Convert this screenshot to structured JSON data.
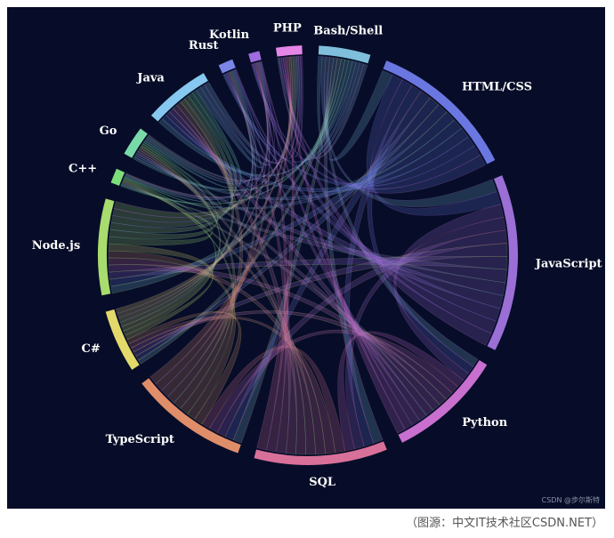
{
  "chart_data": {
    "type": "chord",
    "categories": [
      "Bash/Shell",
      "HTML/CSS",
      "JavaScript",
      "Python",
      "SQL",
      "TypeScript",
      "C#",
      "Node.js",
      "C++",
      "Go",
      "Java",
      "Rust",
      "Kotlin",
      "PHP"
    ],
    "values": [
      14,
      40,
      48,
      31,
      36,
      32,
      17,
      26,
      4,
      8,
      18,
      4,
      3,
      7
    ],
    "colors": [
      "#7fbfdc",
      "#6b77e0",
      "#9b6fd6",
      "#c86fcf",
      "#d9709a",
      "#e08d6a",
      "#e3d96b",
      "#a8dc6e",
      "#7dde7a",
      "#7ad9a8",
      "#86c8ef",
      "#7b85e8",
      "#a06de0",
      "#e585e8"
    ],
    "watermark": "CSDN @步尔斯特",
    "source": "（图源：中文IT技术社区CSDN.NET）"
  }
}
